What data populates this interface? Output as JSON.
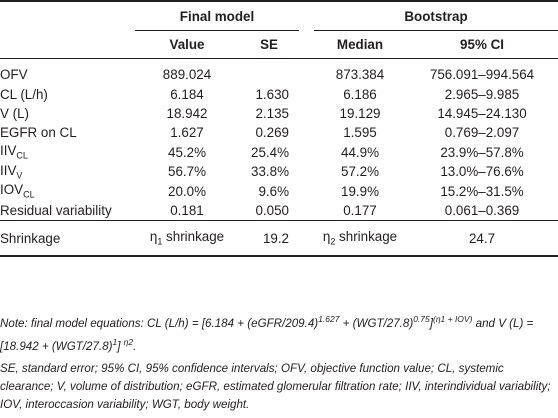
{
  "header": {
    "group_final": "Final model",
    "group_boot": "Bootstrap",
    "col_value": "Value",
    "col_se": "SE",
    "col_median": "Median",
    "col_ci": "95% CI"
  },
  "rows": [
    {
      "label": "OFV",
      "value": "889.024",
      "se": "",
      "median": "873.384",
      "ci": "756.091–994.564"
    },
    {
      "label": "CL (L/h)",
      "value": "6.184",
      "se": "1.630",
      "median": "6.186",
      "ci": "2.965–9.985"
    },
    {
      "label": "V (L)",
      "value": "18.942",
      "se": "2.135",
      "median": "19.129",
      "ci": "14.945–24.130"
    },
    {
      "label": "EGFR on CL",
      "value": "1.627",
      "se": "0.269",
      "median": "1.595",
      "ci": "0.769–2.097"
    },
    {
      "label_main": "IIV",
      "label_sub": "CL",
      "value": "45.2%",
      "se": "25.4%",
      "median": "44.9%",
      "ci": "23.9%–57.8%"
    },
    {
      "label_main": "IIV",
      "label_sub": "V",
      "value": "56.7%",
      "se": "33.8%",
      "median": "57.2%",
      "ci": "13.0%–76.6%"
    },
    {
      "label_main": "IOV",
      "label_sub": "CL",
      "value": "20.0%",
      "se": "9.6%",
      "median": "19.9%",
      "ci": "15.2%–31.5%"
    },
    {
      "label": "Residual variability",
      "value": "0.181",
      "se": "0.050",
      "median": "0.177",
      "ci": "0.061–0.369"
    }
  ],
  "shrinkage": {
    "label": "Shrinkage",
    "eta1_symbol": "η",
    "eta1_sub": "1",
    "eta1_text": " shrinkage",
    "eta1_value": "19.2",
    "eta2_symbol": "η",
    "eta2_sub": "2",
    "eta2_text": " shrinkage",
    "eta2_value": "24.7"
  },
  "notes": {
    "n1_a": "Note: final model equations: CL (L/h) = [6.184 + (eGFR/209.4)",
    "n1_sup1": "1.627",
    "n1_b": " + (WGT/27.8)",
    "n1_sup2": "0.75",
    "n1_c": "]",
    "n1_sup3": "(η1 + IOV)",
    "n1_d": " and V (L) = [18.942 + (WGT/27.8)",
    "n1_sup4": "1",
    "n1_e": "] ",
    "n1_sup5": "η2",
    "n1_f": ".",
    "n2": "SE, standard error; 95% CI, 95% confidence intervals; OFV, objective function value; CL, systemic clearance; V, volume of distribution; eGFR, estimated glomerular filtration rate; IIV, interindividual variability; IOV, interoccasion variability; WGT, body weight."
  }
}
